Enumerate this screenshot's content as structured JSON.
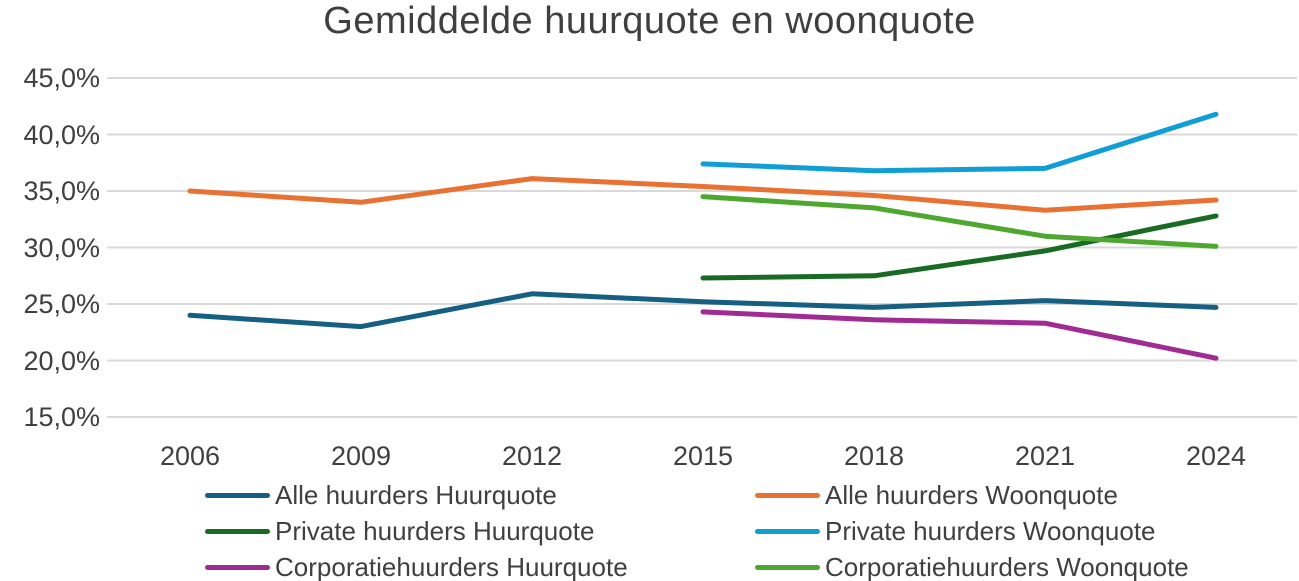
{
  "title": "Gemiddelde huurquote en woonquote",
  "chart_data": {
    "type": "line",
    "x": [
      2006,
      2009,
      2012,
      2015,
      2018,
      2021,
      2024
    ],
    "x_labels": [
      "2006",
      "2009",
      "2012",
      "2015",
      "2018",
      "2021",
      "2024"
    ],
    "y_ticks": [
      45,
      40,
      35,
      30,
      25,
      20,
      15
    ],
    "y_tick_labels": [
      "45,0%",
      "40,0%",
      "35,0%",
      "30,0%",
      "25,0%",
      "20,0%",
      "15,0%"
    ],
    "ylim": [
      15,
      45
    ],
    "grid": true,
    "gridline_color": "#d9d9d9",
    "legend_position": "bottom",
    "series": [
      {
        "name": "Alle huurders Huurquote",
        "color": "#156082",
        "values": [
          24.0,
          23.0,
          25.9,
          25.2,
          24.7,
          25.3,
          24.7
        ]
      },
      {
        "name": "Alle huurders Woonquote",
        "color": "#E97132",
        "values": [
          35.0,
          34.0,
          36.1,
          35.4,
          34.6,
          33.3,
          34.2
        ]
      },
      {
        "name": "Private huurders Huurquote",
        "color": "#196B24",
        "values": [
          null,
          null,
          null,
          27.3,
          27.5,
          29.7,
          32.8
        ]
      },
      {
        "name": "Private huurders Woonquote",
        "color": "#0F9ED5",
        "values": [
          null,
          null,
          null,
          37.4,
          36.8,
          37.0,
          41.8
        ]
      },
      {
        "name": "Corporatiehuurders Huurquote",
        "color": "#A02B93",
        "values": [
          null,
          null,
          null,
          24.3,
          23.6,
          23.3,
          20.2
        ]
      },
      {
        "name": "Corporatiehuurders Woonquote",
        "color": "#4EA72E",
        "values": [
          null,
          null,
          null,
          34.5,
          33.5,
          31.0,
          30.1
        ]
      }
    ]
  }
}
